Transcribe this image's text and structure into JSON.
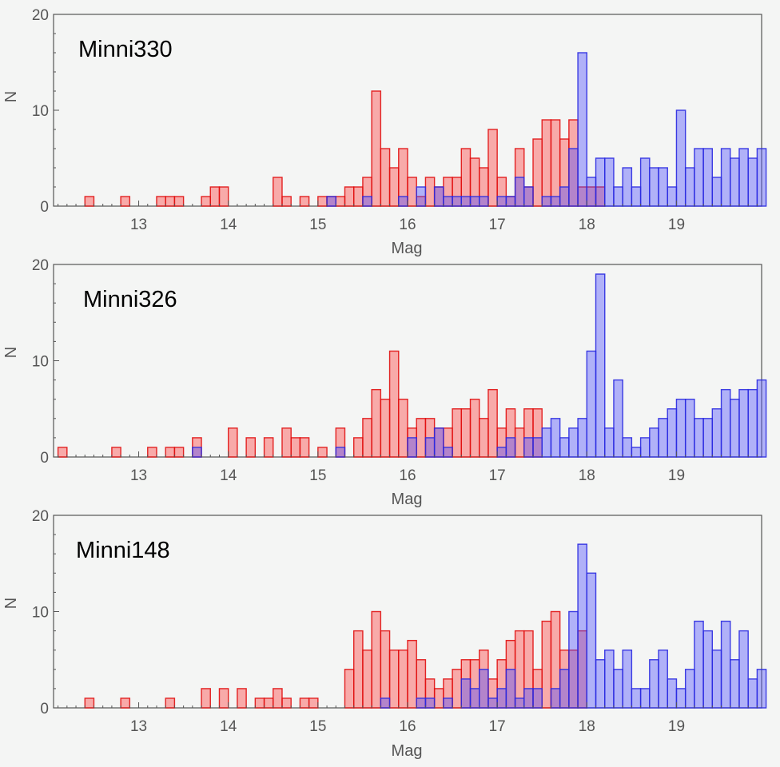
{
  "colors": {
    "background": "#f4f5f4",
    "red_fill": "#ff3a3a",
    "red_stroke": "#e01010",
    "blue_fill": "#4a4aff",
    "blue_stroke": "#2a2ae0",
    "axis": "#555555"
  },
  "chart_data": [
    {
      "type": "bar",
      "title": "Minni330",
      "xlabel": "Mag",
      "ylabel": "N",
      "xlim": [
        12.05,
        19.95
      ],
      "ylim": [
        0,
        20
      ],
      "bin_width": 0.1,
      "x_ticks": [
        13,
        14,
        15,
        16,
        17,
        18,
        19
      ],
      "y_ticks": [
        0,
        10,
        20
      ],
      "series": [
        {
          "name": "red",
          "bins": [
            [
              12.45,
              1
            ],
            [
              12.85,
              1
            ],
            [
              13.25,
              1
            ],
            [
              13.35,
              1
            ],
            [
              13.45,
              1
            ],
            [
              13.75,
              1
            ],
            [
              13.85,
              2
            ],
            [
              13.95,
              2
            ],
            [
              14.55,
              3
            ],
            [
              14.65,
              1
            ],
            [
              14.85,
              1
            ],
            [
              15.05,
              1
            ],
            [
              15.15,
              1
            ],
            [
              15.25,
              1
            ],
            [
              15.35,
              2
            ],
            [
              15.45,
              2
            ],
            [
              15.55,
              3
            ],
            [
              15.65,
              12
            ],
            [
              15.75,
              6
            ],
            [
              15.85,
              4
            ],
            [
              15.95,
              6
            ],
            [
              16.05,
              3
            ],
            [
              16.15,
              1
            ],
            [
              16.25,
              3
            ],
            [
              16.35,
              2
            ],
            [
              16.45,
              3
            ],
            [
              16.55,
              3
            ],
            [
              16.65,
              6
            ],
            [
              16.75,
              5
            ],
            [
              16.85,
              4
            ],
            [
              16.95,
              8
            ],
            [
              17.05,
              3
            ],
            [
              17.15,
              1
            ],
            [
              17.25,
              6
            ],
            [
              17.35,
              2
            ],
            [
              17.45,
              7
            ],
            [
              17.55,
              9
            ],
            [
              17.65,
              9
            ],
            [
              17.75,
              7
            ],
            [
              17.85,
              9
            ],
            [
              17.95,
              2
            ],
            [
              18.05,
              2
            ],
            [
              18.15,
              2
            ]
          ]
        },
        {
          "name": "blue",
          "bins": [
            [
              15.15,
              1
            ],
            [
              15.55,
              1
            ],
            [
              15.95,
              1
            ],
            [
              16.15,
              2
            ],
            [
              16.35,
              2
            ],
            [
              16.45,
              1
            ],
            [
              16.55,
              1
            ],
            [
              16.65,
              1
            ],
            [
              16.75,
              1
            ],
            [
              16.85,
              1
            ],
            [
              17.05,
              1
            ],
            [
              17.15,
              1
            ],
            [
              17.25,
              3
            ],
            [
              17.35,
              2
            ],
            [
              17.55,
              1
            ],
            [
              17.65,
              1
            ],
            [
              17.75,
              2
            ],
            [
              17.85,
              6
            ],
            [
              17.95,
              16
            ],
            [
              18.05,
              3
            ],
            [
              18.15,
              5
            ],
            [
              18.25,
              5
            ],
            [
              18.35,
              2
            ],
            [
              18.45,
              4
            ],
            [
              18.55,
              2
            ],
            [
              18.65,
              5
            ],
            [
              18.75,
              4
            ],
            [
              18.85,
              4
            ],
            [
              18.95,
              2
            ],
            [
              19.05,
              10
            ],
            [
              19.15,
              4
            ],
            [
              19.25,
              6
            ],
            [
              19.35,
              6
            ],
            [
              19.45,
              3
            ],
            [
              19.55,
              6
            ],
            [
              19.65,
              5
            ],
            [
              19.75,
              6
            ],
            [
              19.85,
              5
            ],
            [
              19.95,
              6
            ]
          ]
        }
      ]
    },
    {
      "type": "bar",
      "title": "Minni326",
      "xlabel": "Mag",
      "ylabel": "N",
      "xlim": [
        12.05,
        19.95
      ],
      "ylim": [
        0,
        20
      ],
      "bin_width": 0.1,
      "x_ticks": [
        13,
        14,
        15,
        16,
        17,
        18,
        19
      ],
      "y_ticks": [
        0,
        10,
        20
      ],
      "series": [
        {
          "name": "red",
          "bins": [
            [
              12.15,
              1
            ],
            [
              12.75,
              1
            ],
            [
              13.15,
              1
            ],
            [
              13.35,
              1
            ],
            [
              13.45,
              1
            ],
            [
              13.65,
              2
            ],
            [
              14.05,
              3
            ],
            [
              14.25,
              2
            ],
            [
              14.45,
              2
            ],
            [
              14.65,
              3
            ],
            [
              14.75,
              2
            ],
            [
              14.85,
              2
            ],
            [
              15.05,
              1
            ],
            [
              15.25,
              3
            ],
            [
              15.45,
              2
            ],
            [
              15.55,
              4
            ],
            [
              15.65,
              7
            ],
            [
              15.75,
              6
            ],
            [
              15.85,
              11
            ],
            [
              15.95,
              6
            ],
            [
              16.05,
              3
            ],
            [
              16.15,
              4
            ],
            [
              16.25,
              4
            ],
            [
              16.35,
              3
            ],
            [
              16.45,
              3
            ],
            [
              16.55,
              5
            ],
            [
              16.65,
              5
            ],
            [
              16.75,
              6
            ],
            [
              16.85,
              4
            ],
            [
              16.95,
              7
            ],
            [
              17.05,
              3
            ],
            [
              17.15,
              5
            ],
            [
              17.25,
              3
            ],
            [
              17.35,
              5
            ],
            [
              17.45,
              5
            ]
          ]
        },
        {
          "name": "blue",
          "bins": [
            [
              13.65,
              1
            ],
            [
              15.25,
              1
            ],
            [
              16.05,
              2
            ],
            [
              16.25,
              2
            ],
            [
              16.35,
              3
            ],
            [
              16.45,
              1
            ],
            [
              17.05,
              1
            ],
            [
              17.15,
              2
            ],
            [
              17.35,
              2
            ],
            [
              17.45,
              2
            ],
            [
              17.55,
              3
            ],
            [
              17.65,
              4
            ],
            [
              17.75,
              2
            ],
            [
              17.85,
              3
            ],
            [
              17.95,
              4
            ],
            [
              18.05,
              11
            ],
            [
              18.15,
              19
            ],
            [
              18.25,
              3
            ],
            [
              18.35,
              8
            ],
            [
              18.45,
              2
            ],
            [
              18.55,
              1
            ],
            [
              18.65,
              2
            ],
            [
              18.75,
              3
            ],
            [
              18.85,
              4
            ],
            [
              18.95,
              5
            ],
            [
              19.05,
              6
            ],
            [
              19.15,
              6
            ],
            [
              19.25,
              4
            ],
            [
              19.35,
              4
            ],
            [
              19.45,
              5
            ],
            [
              19.55,
              7
            ],
            [
              19.65,
              6
            ],
            [
              19.75,
              7
            ],
            [
              19.85,
              7
            ],
            [
              19.95,
              8
            ]
          ]
        }
      ]
    },
    {
      "type": "bar",
      "title": "Minni148",
      "xlabel": "Mag",
      "ylabel": "N",
      "xlim": [
        12.05,
        19.95
      ],
      "ylim": [
        0,
        20
      ],
      "bin_width": 0.1,
      "x_ticks": [
        13,
        14,
        15,
        16,
        17,
        18,
        19
      ],
      "y_ticks": [
        0,
        10,
        20
      ],
      "series": [
        {
          "name": "red",
          "bins": [
            [
              12.45,
              1
            ],
            [
              12.85,
              1
            ],
            [
              13.35,
              1
            ],
            [
              13.75,
              2
            ],
            [
              13.95,
              2
            ],
            [
              14.15,
              2
            ],
            [
              14.35,
              1
            ],
            [
              14.45,
              1
            ],
            [
              14.55,
              2
            ],
            [
              14.65,
              1
            ],
            [
              14.85,
              1
            ],
            [
              14.95,
              1
            ],
            [
              15.35,
              4
            ],
            [
              15.45,
              8
            ],
            [
              15.55,
              6
            ],
            [
              15.65,
              10
            ],
            [
              15.75,
              8
            ],
            [
              15.85,
              6
            ],
            [
              15.95,
              6
            ],
            [
              16.05,
              7
            ],
            [
              16.15,
              5
            ],
            [
              16.25,
              3
            ],
            [
              16.35,
              2
            ],
            [
              16.45,
              3
            ],
            [
              16.55,
              4
            ],
            [
              16.65,
              5
            ],
            [
              16.75,
              5
            ],
            [
              16.85,
              6
            ],
            [
              16.95,
              3
            ],
            [
              17.05,
              5
            ],
            [
              17.15,
              7
            ],
            [
              17.25,
              8
            ],
            [
              17.35,
              8
            ],
            [
              17.45,
              4
            ],
            [
              17.55,
              9
            ],
            [
              17.65,
              10
            ],
            [
              17.75,
              6
            ],
            [
              17.85,
              6
            ],
            [
              17.95,
              8
            ]
          ]
        },
        {
          "name": "blue",
          "bins": [
            [
              15.75,
              1
            ],
            [
              16.15,
              1
            ],
            [
              16.25,
              1
            ],
            [
              16.45,
              1
            ],
            [
              16.65,
              3
            ],
            [
              16.75,
              2
            ],
            [
              16.85,
              4
            ],
            [
              16.95,
              1
            ],
            [
              17.05,
              2
            ],
            [
              17.15,
              4
            ],
            [
              17.25,
              1
            ],
            [
              17.35,
              2
            ],
            [
              17.45,
              2
            ],
            [
              17.65,
              2
            ],
            [
              17.75,
              4
            ],
            [
              17.85,
              10
            ],
            [
              17.95,
              17
            ],
            [
              18.05,
              14
            ],
            [
              18.15,
              5
            ],
            [
              18.25,
              6
            ],
            [
              18.35,
              4
            ],
            [
              18.45,
              6
            ],
            [
              18.55,
              2
            ],
            [
              18.65,
              2
            ],
            [
              18.75,
              5
            ],
            [
              18.85,
              6
            ],
            [
              18.95,
              3
            ],
            [
              19.05,
              2
            ],
            [
              19.15,
              4
            ],
            [
              19.25,
              9
            ],
            [
              19.35,
              8
            ],
            [
              19.45,
              6
            ],
            [
              19.55,
              9
            ],
            [
              19.65,
              5
            ],
            [
              19.75,
              8
            ],
            [
              19.85,
              3
            ],
            [
              19.95,
              4
            ]
          ]
        }
      ]
    }
  ]
}
